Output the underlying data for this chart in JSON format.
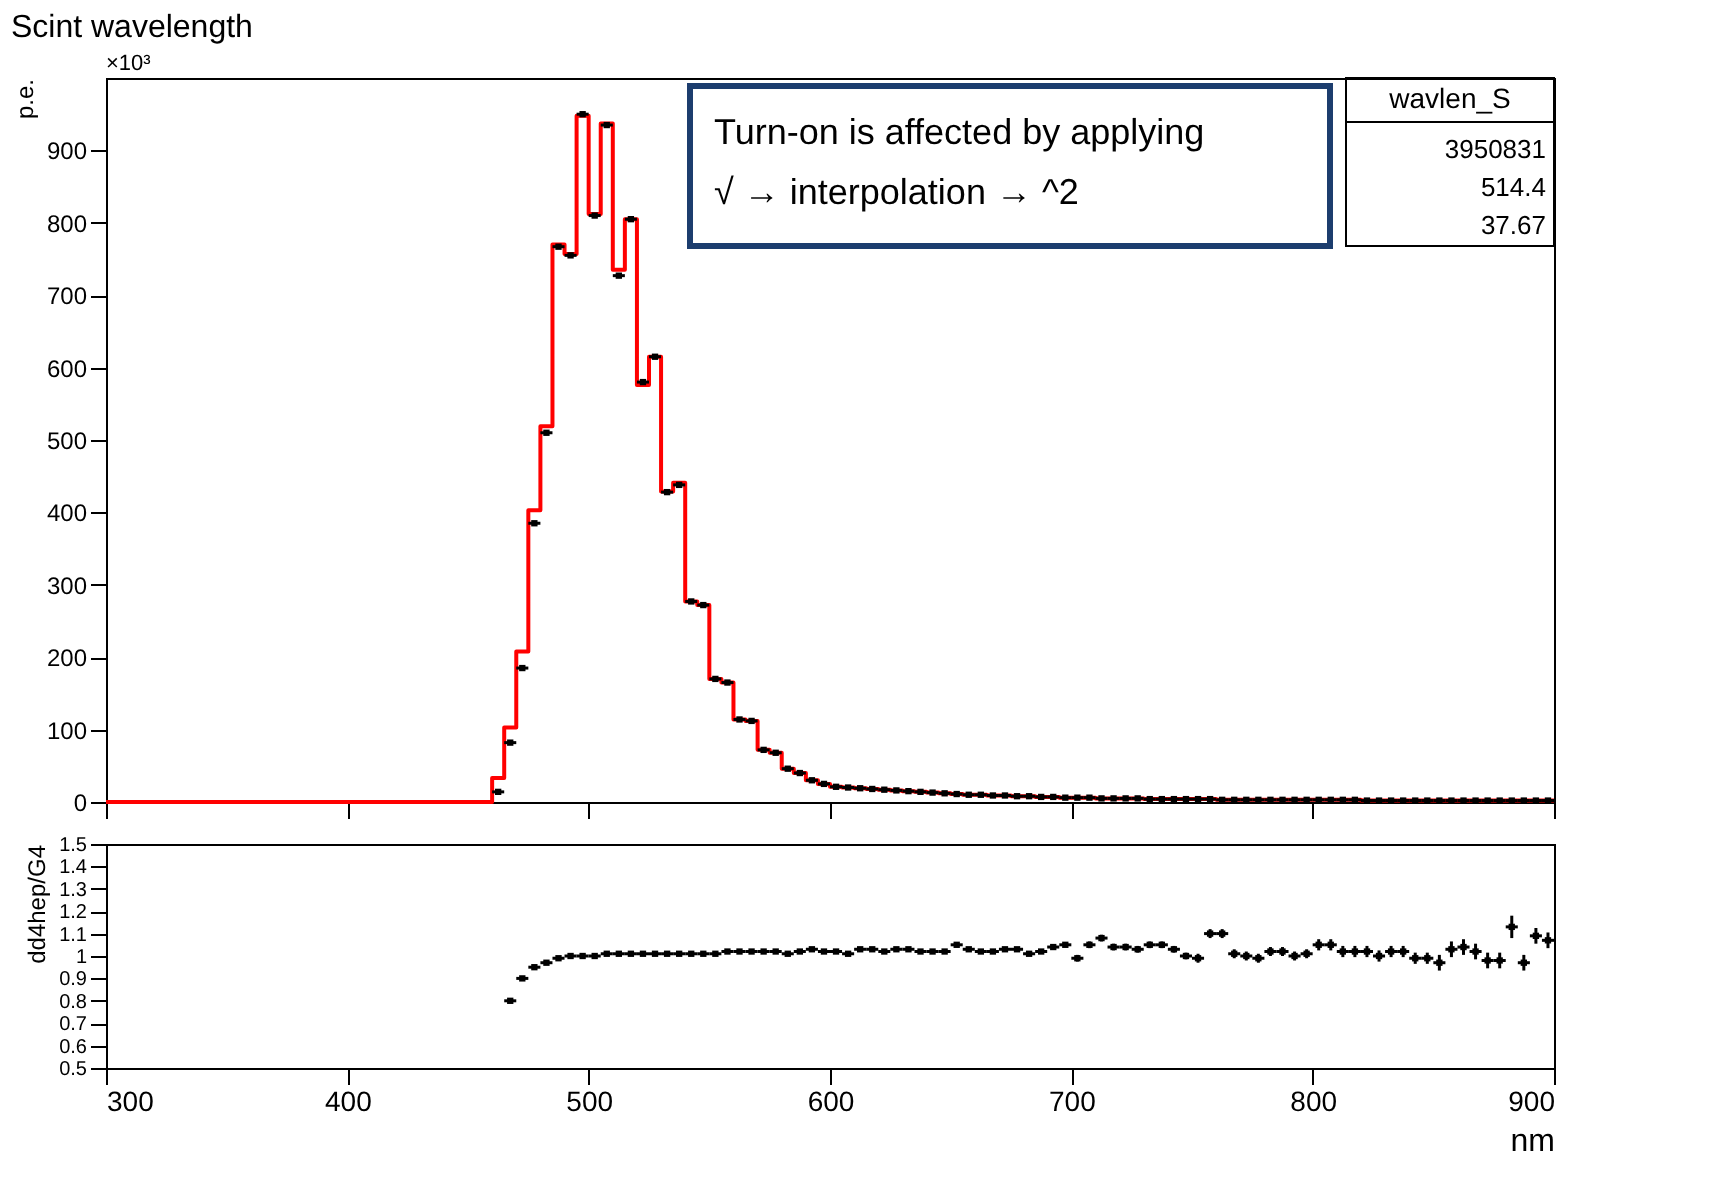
{
  "chart_data": [
    {
      "type": "histogram",
      "title": "Scint wavelength",
      "ylabel": "p.e.",
      "xlim": [
        300,
        900
      ],
      "xticks": [
        300,
        400,
        500,
        600,
        700,
        800,
        900
      ],
      "ylim": [
        0,
        1000
      ],
      "yticks": [
        0,
        100,
        200,
        300,
        400,
        500,
        600,
        700,
        800,
        900
      ],
      "tick_labels": "y",
      "marker": "square",
      "annotations": [
        "×10³",
        "wavlen_S",
        "3950831",
        "514.4",
        "37.67",
        "Turn-on is affected by applying",
        "√ → interpolation → ^2"
      ],
      "bins": [
        300,
        460,
        465,
        470,
        475,
        480,
        485,
        490,
        495,
        500,
        505,
        510,
        515,
        520,
        525,
        530,
        535,
        540,
        545,
        550,
        555,
        560,
        565,
        570,
        575,
        580,
        585,
        590,
        595,
        600,
        605,
        610,
        615,
        620,
        625,
        630,
        635,
        640,
        645,
        650,
        655,
        660,
        665,
        670,
        675,
        680,
        685,
        690,
        695,
        700,
        705,
        710,
        715,
        720,
        725,
        730,
        735,
        740,
        745,
        750,
        755,
        760,
        765,
        770,
        775,
        780,
        785,
        790,
        795,
        800,
        805,
        810,
        815,
        820,
        825,
        830,
        835,
        840,
        845,
        850,
        855,
        860,
        865,
        870,
        875,
        880,
        885,
        890,
        895,
        900
      ],
      "series": [
        {
          "type": "histogram",
          "color": "#ff0000",
          "values": [
            0,
            33,
            103,
            208,
            403,
            519,
            770,
            757,
            948,
            812,
            937,
            735,
            805,
            576,
            615,
            429,
            441,
            277,
            272,
            170,
            165,
            114,
            112,
            72,
            68,
            46,
            40,
            30,
            25,
            21,
            20,
            19,
            18,
            17,
            16,
            15,
            14,
            13,
            12,
            11,
            10,
            10,
            9,
            9,
            8,
            8,
            7,
            7,
            6,
            6,
            6,
            5,
            5,
            5,
            5,
            4,
            4,
            4,
            4,
            4,
            4,
            3,
            3,
            3,
            3,
            3,
            3,
            3,
            3,
            3,
            3,
            3,
            3,
            2,
            2,
            2,
            2,
            2,
            2,
            2,
            2,
            2,
            2,
            2,
            2,
            2,
            2,
            2,
            2
          ]
        },
        {
          "type": "scatter",
          "color": "#000000",
          "x": [
            462.5,
            467.5,
            472.5,
            477.5,
            482.5,
            487.5,
            492.5,
            497.5,
            502.5,
            507.5,
            512.5,
            517.5,
            522.5,
            527.5,
            532.5,
            537.5,
            542.5,
            547.5,
            552.5,
            557.5,
            562.5,
            567.5,
            572.5,
            577.5,
            582.5,
            587.5,
            592.5,
            597.5,
            602.5,
            607.5,
            612.5,
            617.5,
            622.5,
            627.5,
            632.5,
            637.5,
            642.5,
            647.5,
            652.5,
            657.5,
            662.5,
            667.5,
            672.5,
            677.5,
            682.5,
            687.5,
            692.5,
            697.5,
            702.5,
            707.5,
            712.5,
            717.5,
            722.5,
            727.5,
            732.5,
            737.5,
            742.5,
            747.5,
            752.5,
            757.5,
            762.5,
            767.5,
            772.5,
            777.5,
            782.5,
            787.5,
            792.5,
            797.5,
            802.5,
            807.5,
            812.5,
            817.5,
            822.5,
            827.5,
            832.5,
            837.5,
            842.5,
            847.5,
            852.5,
            857.5,
            862.5,
            867.5,
            872.5,
            877.5,
            882.5,
            887.5,
            892.5,
            897.5
          ],
          "values": [
            14,
            82,
            185,
            385,
            510,
            767,
            755,
            950,
            810,
            935,
            727,
            805,
            580,
            615,
            428,
            438,
            277,
            272,
            170,
            165,
            114,
            112,
            72,
            68,
            46,
            40,
            30,
            25,
            21,
            20,
            19,
            18,
            17,
            16,
            15,
            14,
            13,
            12,
            11,
            10,
            10,
            9,
            9,
            8,
            8,
            7,
            7,
            6,
            6,
            6,
            5,
            5,
            5,
            5,
            4,
            4,
            4,
            4,
            4,
            4,
            3,
            3,
            3,
            3,
            3,
            3,
            3,
            3,
            3,
            3,
            3,
            3,
            2,
            2,
            2,
            2,
            2,
            2,
            2,
            2,
            2,
            2,
            2,
            2,
            2,
            2,
            2,
            2
          ],
          "xerrors": [
            2.5,
            2.5,
            2.5,
            2.5,
            2.5,
            2.5,
            2.5,
            2.5,
            2.5,
            2.5,
            2.5,
            2.5,
            2.5,
            2.5,
            2.5,
            2.5,
            2.5,
            2.5,
            2.5,
            2.5,
            2.5,
            2.5,
            2.5,
            2.5,
            2.5,
            2.5,
            2.5,
            2.5,
            2.5,
            2.5,
            2.5,
            2.5,
            2.5,
            2.5,
            2.5,
            2.5,
            2.5,
            2.5,
            2.5,
            2.5,
            2.5,
            2.5,
            2.5,
            2.5,
            2.5,
            2.5,
            2.5,
            2.5,
            2.5,
            2.5,
            2.5,
            2.5,
            2.5,
            2.5,
            2.5,
            2.5,
            2.5,
            2.5,
            2.5,
            2.5,
            2.5,
            2.5,
            2.5,
            2.5,
            2.5,
            2.5,
            2.5,
            2.5,
            2.5,
            2.5,
            2.5,
            2.5,
            2.5,
            2.5,
            2.5,
            2.5,
            2.5,
            2.5,
            2.5,
            2.5,
            2.5,
            2.5,
            2.5,
            2.5,
            2.5,
            2.5,
            2.5,
            2.5
          ]
        }
      ]
    },
    {
      "type": "scatter",
      "xlabel": "nm",
      "ylabel": "dd4hep/G4",
      "xlim": [
        300,
        900
      ],
      "xticks": [
        300,
        400,
        500,
        600,
        700,
        800,
        900
      ],
      "ylim": [
        0.5,
        1.5
      ],
      "yticks": [
        0.5,
        0.6,
        0.7,
        0.8,
        0.9,
        1,
        1.1,
        1.2,
        1.3,
        1.4,
        1.5
      ],
      "marker": "square",
      "series": [
        {
          "color": "#000000",
          "x": [
            467.5,
            472.5,
            477.5,
            482.5,
            487.5,
            492.5,
            497.5,
            502.5,
            507.5,
            512.5,
            517.5,
            522.5,
            527.5,
            532.5,
            537.5,
            542.5,
            547.5,
            552.5,
            557.5,
            562.5,
            567.5,
            572.5,
            577.5,
            582.5,
            587.5,
            592.5,
            597.5,
            602.5,
            607.5,
            612.5,
            617.5,
            622.5,
            627.5,
            632.5,
            637.5,
            642.5,
            647.5,
            652.5,
            657.5,
            662.5,
            667.5,
            672.5,
            677.5,
            682.5,
            687.5,
            692.5,
            697.5,
            702.5,
            707.5,
            712.5,
            717.5,
            722.5,
            727.5,
            732.5,
            737.5,
            742.5,
            747.5,
            752.5,
            757.5,
            762.5,
            767.5,
            772.5,
            777.5,
            782.5,
            787.5,
            792.5,
            797.5,
            802.5,
            807.5,
            812.5,
            817.5,
            822.5,
            827.5,
            832.5,
            837.5,
            842.5,
            847.5,
            852.5,
            857.5,
            862.5,
            867.5,
            872.5,
            877.5,
            882.5,
            887.5,
            892.5,
            897.5
          ],
          "values": [
            0.8,
            0.9,
            0.95,
            0.97,
            0.99,
            1.0,
            1.0,
            1.0,
            1.01,
            1.01,
            1.01,
            1.01,
            1.01,
            1.01,
            1.01,
            1.01,
            1.01,
            1.01,
            1.02,
            1.02,
            1.02,
            1.02,
            1.02,
            1.01,
            1.02,
            1.03,
            1.02,
            1.02,
            1.01,
            1.03,
            1.03,
            1.02,
            1.03,
            1.03,
            1.02,
            1.02,
            1.02,
            1.05,
            1.03,
            1.02,
            1.02,
            1.03,
            1.03,
            1.01,
            1.02,
            1.04,
            1.05,
            0.99,
            1.05,
            1.08,
            1.04,
            1.04,
            1.03,
            1.05,
            1.05,
            1.03,
            1.0,
            0.99,
            1.1,
            1.1,
            1.01,
            1.0,
            0.99,
            1.02,
            1.02,
            1.0,
            1.01,
            1.05,
            1.05,
            1.02,
            1.02,
            1.02,
            1.0,
            1.02,
            1.02,
            0.99,
            0.99,
            0.97,
            1.03,
            1.04,
            1.02,
            0.98,
            0.98,
            1.13,
            0.97,
            1.09,
            1.07
          ],
          "errors": [
            null,
            null,
            null,
            null,
            null,
            null,
            null,
            null,
            null,
            null,
            null,
            null,
            null,
            null,
            null,
            null,
            null,
            null,
            null,
            null,
            null,
            null,
            null,
            null,
            null,
            null,
            null,
            null,
            null,
            null,
            null,
            null,
            null,
            null,
            null,
            null,
            null,
            null,
            null,
            null,
            null,
            null,
            null,
            null,
            null,
            null,
            null,
            0.015,
            0.015,
            0.015,
            0.015,
            0.015,
            0.015,
            0.015,
            0.015,
            0.015,
            0.015,
            0.02,
            0.02,
            0.02,
            0.02,
            0.02,
            0.02,
            0.02,
            0.02,
            0.02,
            0.02,
            0.025,
            0.025,
            0.025,
            0.025,
            0.025,
            0.025,
            0.025,
            0.025,
            0.025,
            0.025,
            0.035,
            0.035,
            0.035,
            0.035,
            0.035,
            0.035,
            0.05,
            0.035,
            0.035,
            0.035
          ],
          "xerrors": [
            2.5,
            2.5,
            2.5,
            2.5,
            2.5,
            2.5,
            2.5,
            2.5,
            2.5,
            2.5,
            2.5,
            2.5,
            2.5,
            2.5,
            2.5,
            2.5,
            2.5,
            2.5,
            2.5,
            2.5,
            2.5,
            2.5,
            2.5,
            2.5,
            2.5,
            2.5,
            2.5,
            2.5,
            2.5,
            2.5,
            2.5,
            2.5,
            2.5,
            2.5,
            2.5,
            2.5,
            2.5,
            2.5,
            2.5,
            2.5,
            2.5,
            2.5,
            2.5,
            2.5,
            2.5,
            2.5,
            2.5,
            2.5,
            2.5,
            2.5,
            2.5,
            2.5,
            2.5,
            2.5,
            2.5,
            2.5,
            2.5,
            2.5,
            2.5,
            2.5,
            2.5,
            2.5,
            2.5,
            2.5,
            2.5,
            2.5,
            2.5,
            2.5,
            2.5,
            2.5,
            2.5,
            2.5,
            2.5,
            2.5,
            2.5,
            2.5,
            2.5,
            2.5,
            2.5,
            2.5,
            2.5,
            2.5,
            2.5,
            2.5,
            2.5,
            2.5,
            2.5
          ]
        }
      ]
    }
  ]
}
